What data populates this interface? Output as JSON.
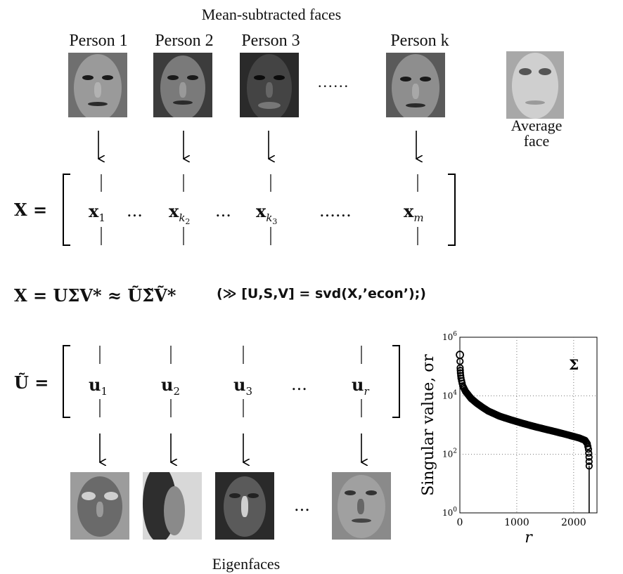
{
  "top": {
    "title": "Mean-subtracted faces",
    "persons": [
      {
        "label": "Person 1"
      },
      {
        "label": "Person 2"
      },
      {
        "label": "Person 3"
      },
      {
        "label": "Person k"
      }
    ],
    "ellipsis": "......",
    "average_label_line1": "Average",
    "average_label_line2": "face"
  },
  "matrix_x": {
    "lhs": "X =",
    "cols": [
      "x1",
      "xk2",
      "xk3",
      "xm"
    ],
    "dots_small": "...",
    "dots_large": "......"
  },
  "svd": {
    "equation": "X = UΣV* ≈ ŨΣ̃Ṽ*",
    "matlab": "(≫ [U,S,V] = svd(X,’econ’);)"
  },
  "matrix_u": {
    "lhs": "Ũ =",
    "cols": [
      "u1",
      "u2",
      "u3",
      "ur"
    ],
    "dots": "..."
  },
  "eigenfaces": {
    "caption": "Eigenfaces",
    "dots": "..."
  },
  "chart_data": {
    "type": "line",
    "xlabel": "r",
    "ylabel": "Singular value, σr",
    "series_label": "Σ",
    "yscale": "log",
    "xlim": [
      0,
      2410
    ],
    "ylim": [
      1,
      1000000
    ],
    "xticks": [
      "0",
      "1000",
      "2000"
    ],
    "yticks": [
      "10^0",
      "10^2",
      "10^4",
      "10^6"
    ],
    "grid": true,
    "points": [
      [
        1,
        250000
      ],
      [
        5,
        90000
      ],
      [
        10,
        60000
      ],
      [
        20,
        40000
      ],
      [
        50,
        22000
      ],
      [
        100,
        14000
      ],
      [
        200,
        8000
      ],
      [
        300,
        5500
      ],
      [
        400,
        4000
      ],
      [
        500,
        3000
      ],
      [
        700,
        2000
      ],
      [
        900,
        1500
      ],
      [
        1100,
        1150
      ],
      [
        1300,
        900
      ],
      [
        1500,
        720
      ],
      [
        1700,
        580
      ],
      [
        1900,
        460
      ],
      [
        2100,
        360
      ],
      [
        2200,
        300
      ],
      [
        2240,
        230
      ],
      [
        2260,
        150
      ],
      [
        2270,
        80
      ],
      [
        2272,
        40
      ]
    ]
  }
}
